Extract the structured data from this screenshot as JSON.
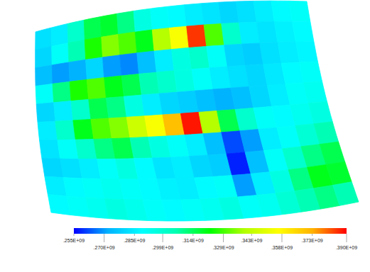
{
  "chart_data": {
    "type": "heatmap",
    "cells": [
      [
        282000000,
        285000000,
        300000000,
        315000000,
        318000000,
        310000000,
        295000000,
        290000000,
        288000000,
        285000000,
        283000000,
        280000000,
        282000000,
        285000000,
        288000000,
        290000000
      ],
      [
        280000000,
        290000000,
        305000000,
        325000000,
        335000000,
        330000000,
        320000000,
        340000000,
        355000000,
        385000000,
        330000000,
        300000000,
        285000000,
        283000000,
        286000000,
        288000000
      ],
      [
        275000000,
        270000000,
        272000000,
        280000000,
        270000000,
        268000000,
        275000000,
        285000000,
        295000000,
        300000000,
        290000000,
        280000000,
        278000000,
        282000000,
        285000000,
        287000000
      ],
      [
        290000000,
        310000000,
        325000000,
        330000000,
        320000000,
        315000000,
        305000000,
        300000000,
        295000000,
        290000000,
        285000000,
        282000000,
        280000000,
        284000000,
        288000000,
        290000000
      ],
      [
        280000000,
        285000000,
        300000000,
        315000000,
        310000000,
        295000000,
        285000000,
        280000000,
        278000000,
        275000000,
        272000000,
        275000000,
        280000000,
        285000000,
        290000000,
        292000000
      ],
      [
        285000000,
        300000000,
        320000000,
        330000000,
        335000000,
        345000000,
        355000000,
        370000000,
        388000000,
        340000000,
        315000000,
        300000000,
        290000000,
        288000000,
        292000000,
        295000000
      ],
      [
        283000000,
        290000000,
        300000000,
        310000000,
        315000000,
        305000000,
        295000000,
        290000000,
        285000000,
        275000000,
        262000000,
        270000000,
        285000000,
        290000000,
        298000000,
        305000000
      ],
      [
        280000000,
        282000000,
        285000000,
        290000000,
        295000000,
        288000000,
        283000000,
        285000000,
        280000000,
        278000000,
        258000000,
        275000000,
        290000000,
        300000000,
        310000000,
        315000000
      ],
      [
        285000000,
        288000000,
        290000000,
        292000000,
        290000000,
        288000000,
        286000000,
        285000000,
        288000000,
        290000000,
        270000000,
        285000000,
        295000000,
        310000000,
        320000000,
        318000000
      ],
      [
        288000000,
        290000000,
        292000000,
        295000000,
        293000000,
        290000000,
        288000000,
        290000000,
        292000000,
        295000000,
        290000000,
        292000000,
        298000000,
        305000000,
        310000000,
        305000000
      ]
    ],
    "color_range": [
      255000000,
      390000000
    ],
    "color_ticks": [
      {
        "value": 255000000,
        "label": ".255E+09"
      },
      {
        "value": 270000000,
        "label": ".270E+09"
      },
      {
        "value": 285000000,
        "label": ".285E+09"
      },
      {
        "value": 299000000,
        "label": ".299E+09"
      },
      {
        "value": 314000000,
        "label": ".314E+09"
      },
      {
        "value": 329000000,
        "label": ".329E+09"
      },
      {
        "value": 343000000,
        "label": ".343E+09"
      },
      {
        "value": 358000000,
        "label": ".358E+09"
      },
      {
        "value": 373000000,
        "label": ".373E+09"
      },
      {
        "value": 390000000,
        "label": ".390E+09"
      }
    ]
  }
}
